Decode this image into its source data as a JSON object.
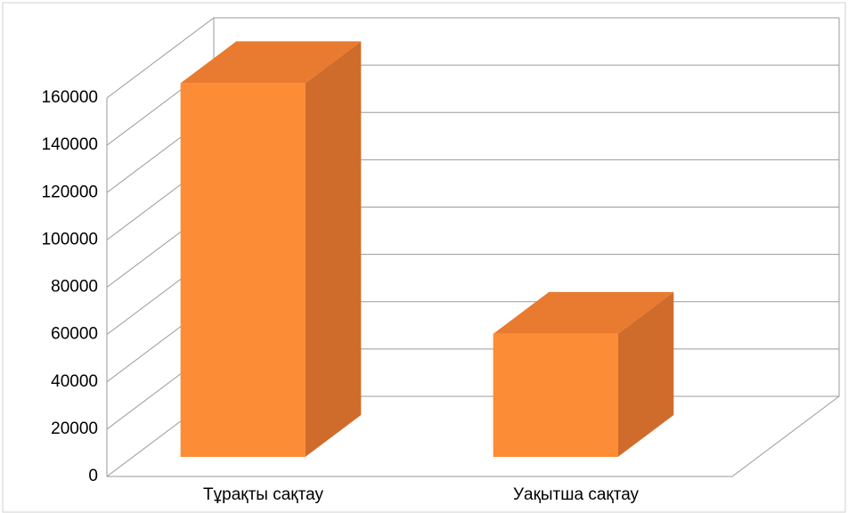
{
  "chart_data": {
    "type": "bar3d",
    "categories": [
      "Тұрақты сақтау",
      "Уақытша сақтау"
    ],
    "values": [
      158000,
      52000
    ],
    "color": "#fd8c36",
    "ylim": [
      0,
      160000
    ],
    "yticks": [
      0,
      20000,
      40000,
      60000,
      80000,
      100000,
      120000,
      140000,
      160000
    ],
    "grid": true
  }
}
